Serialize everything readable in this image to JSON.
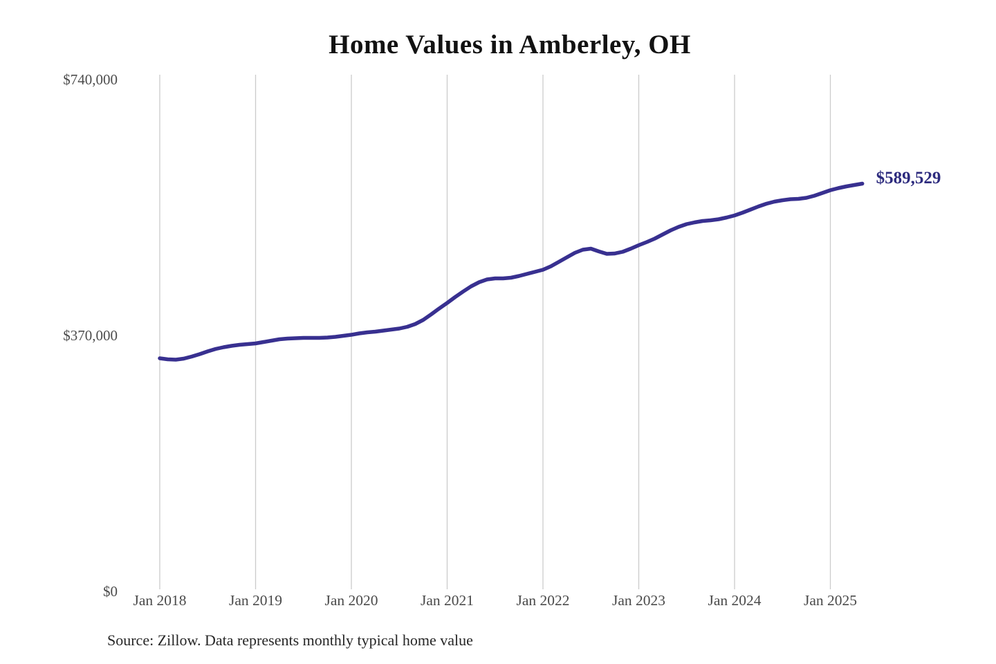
{
  "chart": {
    "title": "Home Values in Amberley, OH",
    "end_label": "$589,529",
    "source": "Source: Zillow. Data represents monthly typical home value"
  },
  "chart_data": {
    "type": "line",
    "title": "Home Values in Amberley, OH",
    "series_name": "Monthly typical home value",
    "x": [
      "2018-01",
      "2018-02",
      "2018-03",
      "2018-04",
      "2018-05",
      "2018-06",
      "2018-07",
      "2018-08",
      "2018-09",
      "2018-10",
      "2018-11",
      "2018-12",
      "2019-01",
      "2019-02",
      "2019-03",
      "2019-04",
      "2019-05",
      "2019-06",
      "2019-07",
      "2019-08",
      "2019-09",
      "2019-10",
      "2019-11",
      "2019-12",
      "2020-01",
      "2020-02",
      "2020-03",
      "2020-04",
      "2020-05",
      "2020-06",
      "2020-07",
      "2020-08",
      "2020-09",
      "2020-10",
      "2020-11",
      "2020-12",
      "2021-01",
      "2021-02",
      "2021-03",
      "2021-04",
      "2021-05",
      "2021-06",
      "2021-07",
      "2021-08",
      "2021-09",
      "2021-10",
      "2021-11",
      "2021-12",
      "2022-01",
      "2022-02",
      "2022-03",
      "2022-04",
      "2022-05",
      "2022-06",
      "2022-07",
      "2022-08",
      "2022-09",
      "2022-10",
      "2022-11",
      "2022-12",
      "2023-01",
      "2023-02",
      "2023-03",
      "2023-04",
      "2023-05",
      "2023-06",
      "2023-07",
      "2023-08",
      "2023-09",
      "2023-10",
      "2023-11",
      "2023-12",
      "2024-01",
      "2024-02",
      "2024-03",
      "2024-04",
      "2024-05",
      "2024-06",
      "2024-07",
      "2024-08",
      "2024-09",
      "2024-10",
      "2024-11",
      "2024-12",
      "2025-01",
      "2025-02",
      "2025-03",
      "2025-04",
      "2025-05"
    ],
    "values": [
      337000,
      335500,
      335000,
      336500,
      339500,
      343000,
      347000,
      350500,
      353000,
      355000,
      356500,
      357500,
      358500,
      360500,
      362500,
      364500,
      365500,
      366000,
      366500,
      366500,
      366500,
      367000,
      368000,
      369500,
      371000,
      373000,
      374500,
      375500,
      377000,
      378500,
      380000,
      382500,
      386500,
      392500,
      400500,
      409000,
      417000,
      425500,
      433500,
      441000,
      447000,
      451000,
      452500,
      452500,
      453500,
      456000,
      459000,
      462000,
      465000,
      470000,
      476500,
      483000,
      489500,
      494000,
      495500,
      491500,
      488000,
      488500,
      491000,
      495500,
      500500,
      505000,
      510000,
      516000,
      522000,
      527000,
      531000,
      533500,
      535500,
      536500,
      538000,
      540500,
      543500,
      547500,
      552000,
      556500,
      560500,
      563500,
      565500,
      567000,
      567500,
      569000,
      572000,
      576000,
      580000,
      583000,
      585500,
      587500,
      589529
    ],
    "final_value": 589529,
    "final_value_label": "$589,529",
    "y_ticks": [
      {
        "label": "$0",
        "value": 0
      },
      {
        "label": "$370,000",
        "value": 370000
      },
      {
        "label": "$740,000",
        "value": 740000
      }
    ],
    "x_ticks": [
      "Jan 2018",
      "Jan 2019",
      "Jan 2020",
      "Jan 2021",
      "Jan 2022",
      "Jan 2023",
      "Jan 2024",
      "Jan 2025"
    ],
    "ylim": [
      0,
      740000
    ],
    "grid": "vertical-only",
    "legend": "none",
    "line_color": "#383090",
    "end_label_color": "#2d2b7e",
    "gridline_color": "#cbcbcb",
    "tick_label_color": "#4a4a4a",
    "source": "Source: Zillow. Data represents monthly typical home value"
  }
}
